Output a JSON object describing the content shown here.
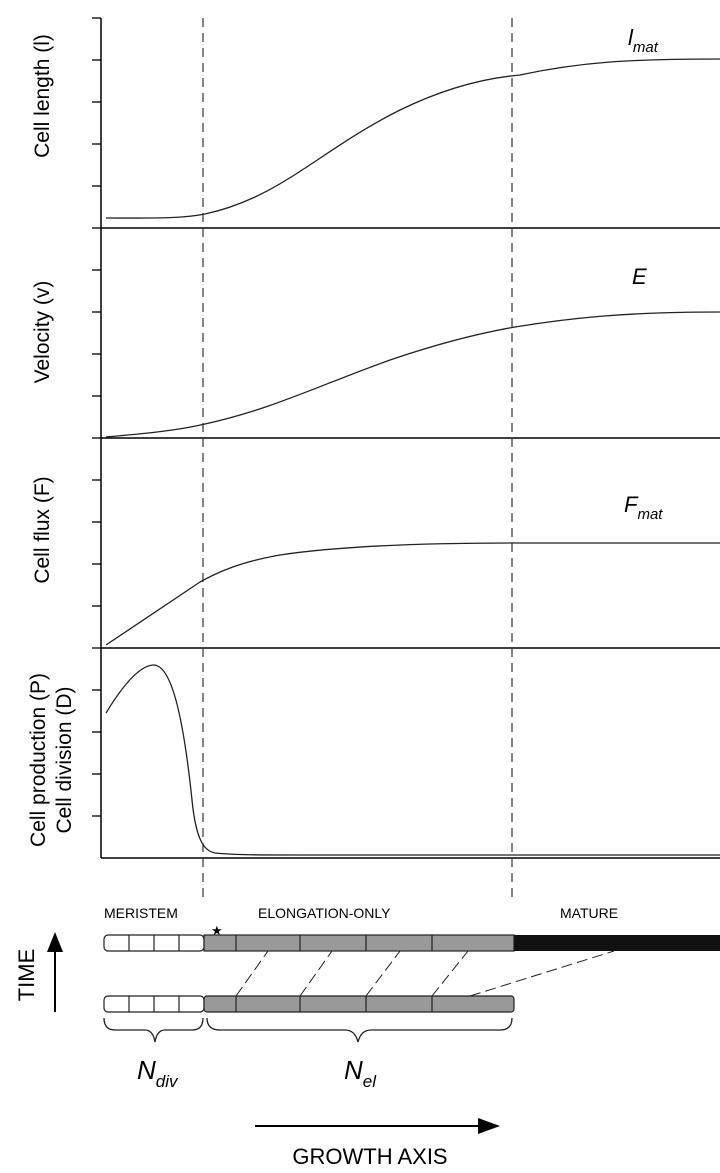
{
  "panels": [
    {
      "id": "length",
      "ylabel": "Cell length (l)",
      "curve_label": "l",
      "curve_label_sub": "mat"
    },
    {
      "id": "velocity",
      "ylabel": "Velocity (v)",
      "curve_label": "E",
      "curve_label_sub": ""
    },
    {
      "id": "flux",
      "ylabel": "Cell flux (F)",
      "curve_label": "F",
      "curve_label_sub": "mat"
    },
    {
      "id": "production",
      "ylabel_line1": "Cell production (P)",
      "ylabel_line2": "Cell division (D)",
      "curve_label": "",
      "curve_label_sub": ""
    }
  ],
  "zones": {
    "meristem": "MERISTEM",
    "elongation": "ELONGATION-ONLY",
    "mature": "MATURE",
    "star": "★"
  },
  "labels": {
    "n_div": "N",
    "n_div_sub": "div",
    "n_el": "N",
    "n_el_sub": "el",
    "time": "TIME",
    "growth_axis": "GROWTH AXIS"
  },
  "colors": {
    "meristem_cell": "#ffffff",
    "elongation_cell": "#999999",
    "mature_cell": "#111111"
  }
}
